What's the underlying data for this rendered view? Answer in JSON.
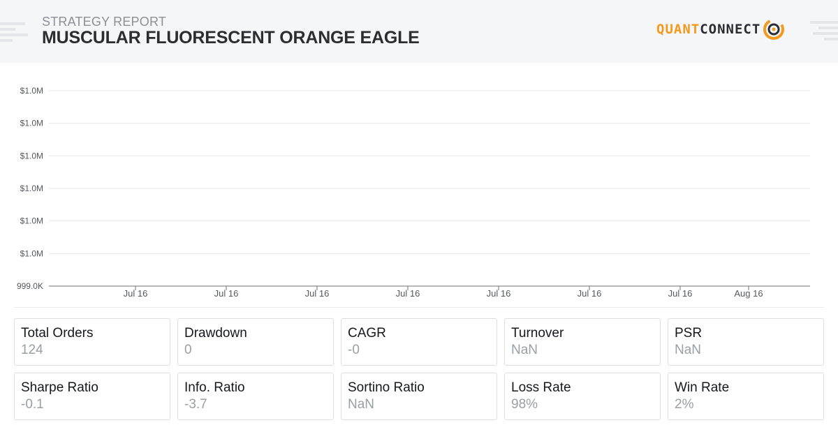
{
  "header": {
    "report_label": "STRATEGY REPORT",
    "title": "MUSCULAR FLUORESCENT ORANGE EAGLE",
    "logo_quant": "QUANT",
    "logo_connect": "CONNECT"
  },
  "colors": {
    "brand_orange": "#f39a1e",
    "brand_dark": "#2a2d33",
    "header_bg": "#f5f6f8"
  },
  "chart_data": {
    "type": "line",
    "title": "",
    "xlabel": "",
    "ylabel": "",
    "y_tick_labels": [
      "$1.0M",
      "$1.0M",
      "$1.0M",
      "$1.0M",
      "$1.0M",
      "$1.0M",
      "999.0K"
    ],
    "x_tick_labels": [
      "Jul 16",
      "Jul 16",
      "Jul 16",
      "Jul 16",
      "Jul 16",
      "Jul 16",
      "Jul 16",
      "Aug 16"
    ],
    "grid": true,
    "legend": "none",
    "series": []
  },
  "stats": [
    {
      "label": "Total Orders",
      "value": "124"
    },
    {
      "label": "Drawdown",
      "value": "0"
    },
    {
      "label": "CAGR",
      "value": "-0"
    },
    {
      "label": "Turnover",
      "value": "NaN"
    },
    {
      "label": "PSR",
      "value": "NaN"
    },
    {
      "label": "Sharpe Ratio",
      "value": "-0.1"
    },
    {
      "label": "Info. Ratio",
      "value": "-3.7"
    },
    {
      "label": "Sortino Ratio",
      "value": "NaN"
    },
    {
      "label": "Loss Rate",
      "value": "98%"
    },
    {
      "label": "Win Rate",
      "value": "2%"
    }
  ]
}
